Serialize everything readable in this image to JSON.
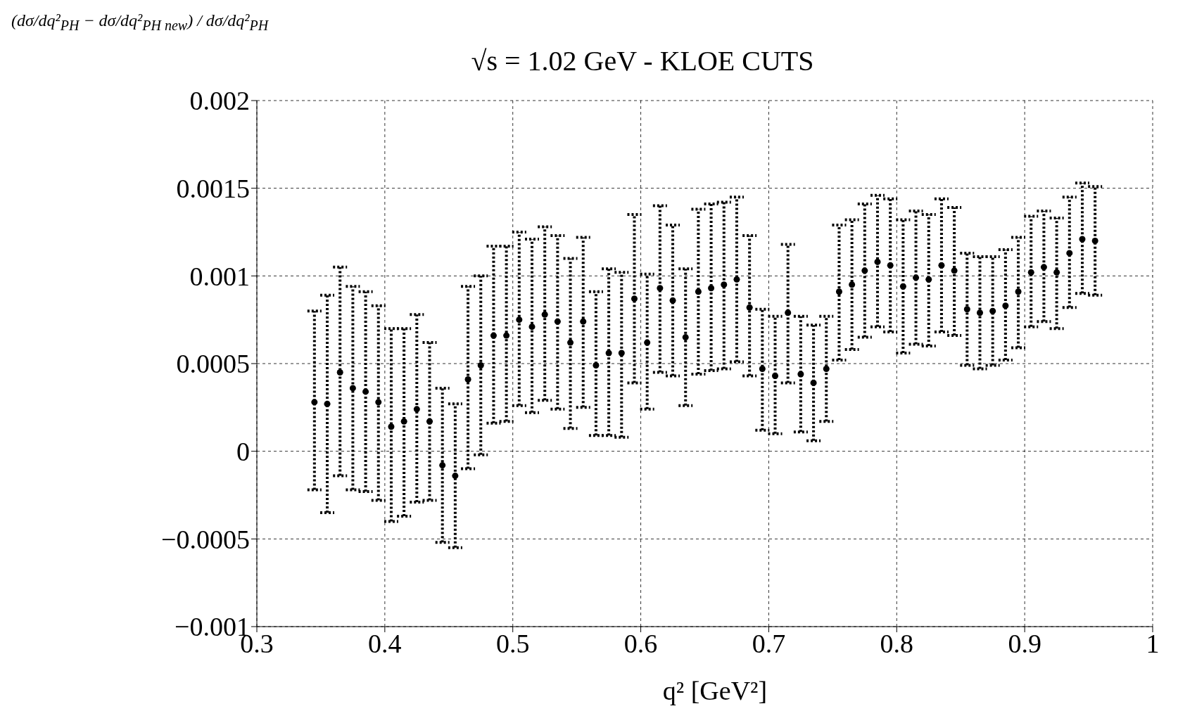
{
  "chart_data": {
    "type": "scatter",
    "title": "√s = 1.02 GeV - KLOE CUTS",
    "xlabel": "q² [GeV²]",
    "ylabel": "(dσ/dq²$_{PH}$ − dσ/dq²$_{PH new}$) / dσ/dq²$_{PH}$",
    "x": [
      0.345,
      0.355,
      0.365,
      0.375,
      0.385,
      0.395,
      0.405,
      0.415,
      0.425,
      0.435,
      0.445,
      0.455,
      0.465,
      0.475,
      0.485,
      0.495,
      0.505,
      0.515,
      0.525,
      0.535,
      0.545,
      0.555,
      0.565,
      0.575,
      0.585,
      0.595,
      0.605,
      0.615,
      0.625,
      0.635,
      0.645,
      0.655,
      0.665,
      0.675,
      0.685,
      0.695,
      0.705,
      0.715,
      0.725,
      0.735,
      0.745,
      0.755,
      0.765,
      0.775,
      0.785,
      0.795,
      0.805,
      0.815,
      0.825,
      0.835,
      0.845,
      0.855,
      0.865,
      0.875,
      0.885,
      0.895,
      0.905,
      0.915,
      0.925,
      0.935,
      0.945,
      0.955
    ],
    "series": [
      {
        "color": "#000000",
        "values": [
          0.00028,
          0.00027,
          0.00045,
          0.00036,
          0.00034,
          0.00028,
          0.00014,
          0.00017,
          0.00024,
          0.00017,
          -8e-05,
          -0.00014,
          0.00041,
          0.00049,
          0.00066,
          0.00066,
          0.00075,
          0.00071,
          0.00078,
          0.00074,
          0.00062,
          0.00074,
          0.00049,
          0.00056,
          0.00056,
          0.00087,
          0.00062,
          0.00093,
          0.00086,
          0.00065,
          0.00091,
          0.00093,
          0.00095,
          0.00098,
          0.00082,
          0.00047,
          0.00043,
          0.00079,
          0.00044,
          0.00039,
          0.00047,
          0.00091,
          0.00095,
          0.00103,
          0.00108,
          0.00106,
          0.00094,
          0.00099,
          0.00098,
          0.00106,
          0.00103,
          0.00081,
          0.00079,
          0.0008,
          0.00083,
          0.00091,
          0.00102,
          0.00105,
          0.00102,
          0.00113,
          0.00121,
          0.0012
        ],
        "errors": [
          [
            -0.00022,
            0.0008
          ],
          [
            -0.00035,
            0.00089
          ],
          [
            -0.00014,
            0.00105
          ],
          [
            -0.00022,
            0.00094
          ],
          [
            -0.00023,
            0.00091
          ],
          [
            -0.00028,
            0.00083
          ],
          [
            -0.0004,
            0.0007
          ],
          [
            -0.00037,
            0.0007
          ],
          [
            -0.00029,
            0.00078
          ],
          [
            -0.00028,
            0.00062
          ],
          [
            -0.00052,
            0.00036
          ],
          [
            -0.00055,
            0.00027
          ],
          [
            -0.0001,
            0.00094
          ],
          [
            -2e-05,
            0.001
          ],
          [
            0.00016,
            0.00117
          ],
          [
            0.00017,
            0.00117
          ],
          [
            0.00026,
            0.00125
          ],
          [
            0.00022,
            0.00121
          ],
          [
            0.00029,
            0.00128
          ],
          [
            0.00024,
            0.00123
          ],
          [
            0.00013,
            0.0011
          ],
          [
            0.00025,
            0.00122
          ],
          [
            9e-05,
            0.00091
          ],
          [
            9e-05,
            0.00104
          ],
          [
            8e-05,
            0.00102
          ],
          [
            0.00039,
            0.00135
          ],
          [
            0.00024,
            0.00101
          ],
          [
            0.00045,
            0.0014
          ],
          [
            0.00043,
            0.00129
          ],
          [
            0.00026,
            0.00104
          ],
          [
            0.00044,
            0.00138
          ],
          [
            0.00046,
            0.00141
          ],
          [
            0.00047,
            0.00142
          ],
          [
            0.00051,
            0.00145
          ],
          [
            0.00043,
            0.00123
          ],
          [
            0.00012,
            0.00081
          ],
          [
            0.0001,
            0.00077
          ],
          [
            0.00039,
            0.00118
          ],
          [
            0.00011,
            0.00077
          ],
          [
            6e-05,
            0.00072
          ],
          [
            0.00017,
            0.00077
          ],
          [
            0.00052,
            0.00129
          ],
          [
            0.00058,
            0.00132
          ],
          [
            0.00065,
            0.00141
          ],
          [
            0.00071,
            0.00146
          ],
          [
            0.00068,
            0.00144
          ],
          [
            0.00056,
            0.00132
          ],
          [
            0.00061,
            0.00137
          ],
          [
            0.0006,
            0.00135
          ],
          [
            0.00068,
            0.00144
          ],
          [
            0.00066,
            0.00139
          ],
          [
            0.00049,
            0.00113
          ],
          [
            0.00047,
            0.00111
          ],
          [
            0.00049,
            0.00111
          ],
          [
            0.00052,
            0.00115
          ],
          [
            0.00059,
            0.00122
          ],
          [
            0.00071,
            0.00134
          ],
          [
            0.00074,
            0.00137
          ],
          [
            0.0007,
            0.00133
          ],
          [
            0.00082,
            0.00145
          ],
          [
            0.0009,
            0.00153
          ],
          [
            0.00089,
            0.00151
          ]
        ]
      }
    ],
    "xlim": [
      0.3,
      1
    ],
    "xticks": [
      0.3,
      0.4,
      0.5,
      0.6,
      0.7,
      0.8,
      0.9,
      1
    ],
    "ylim": [
      -0.001,
      0.002
    ],
    "yticks": [
      {
        "value": -0.001,
        "label": "−0.001"
      },
      {
        "value": -0.0005,
        "label": "−0.0005"
      },
      0,
      0.0005,
      0.001,
      0.0015,
      0.002
    ],
    "grid": true,
    "marker": "circle",
    "line_style": "dotted"
  }
}
